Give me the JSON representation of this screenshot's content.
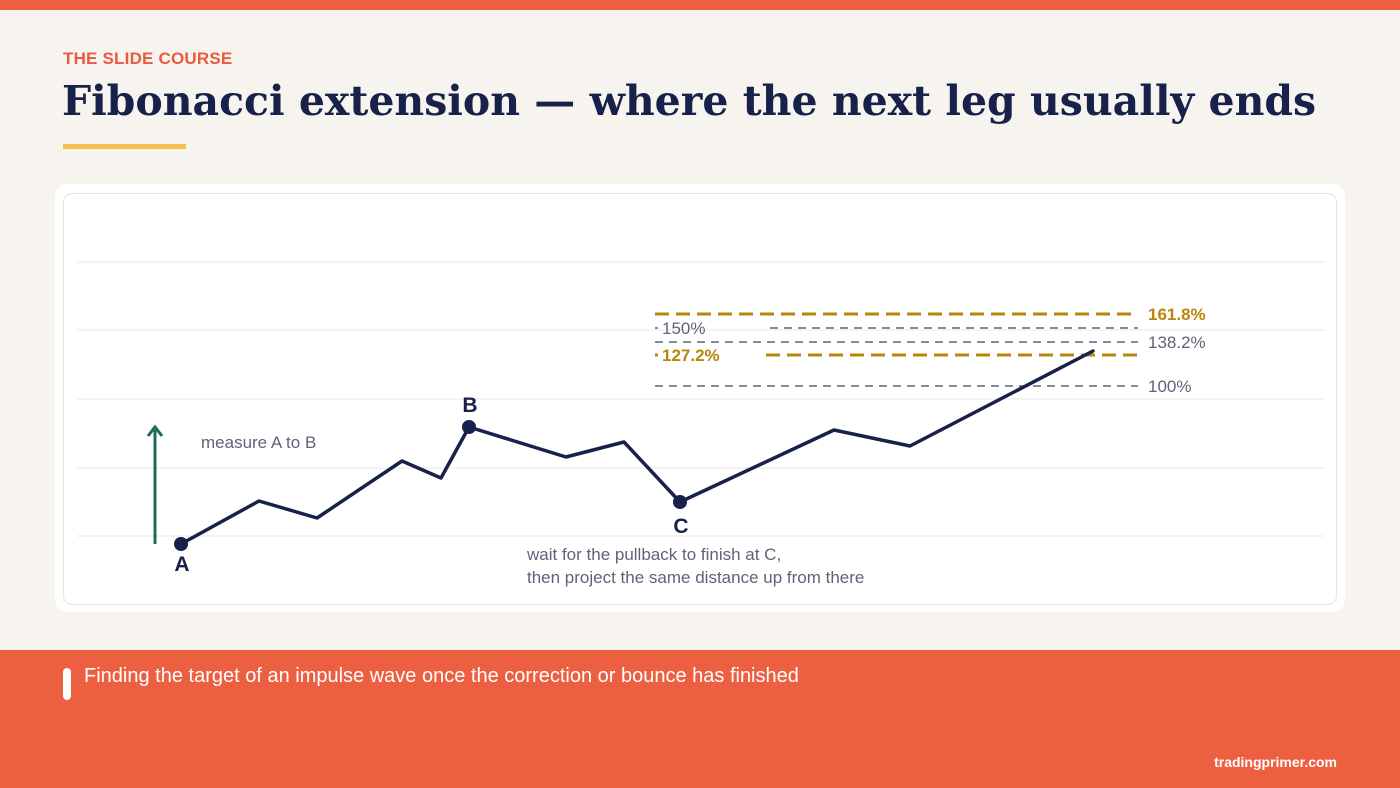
{
  "header": {
    "kicker": "THE SLIDE COURSE",
    "title": "Fibonacci extension — where the next leg usually ends"
  },
  "diagram": {
    "points": {
      "a": "A",
      "b": "B",
      "c": "C"
    },
    "annotations": {
      "measure": "measure A to B",
      "pullback_line1": "wait for the pullback to finish at C,",
      "pullback_line2": "then project the same distance up from there"
    },
    "levels": {
      "l100": "100%",
      "l127": "127.2%",
      "l138": "138.2%",
      "l150": "150%",
      "l161": "161.8%"
    },
    "colors": {
      "price_line": "#17214a",
      "arrow": "#1e6b5c",
      "key_level": "#b8860b",
      "secondary_level": "#5e6478"
    }
  },
  "footer": {
    "caption": "Finding the target of an impulse wave once the correction or bounce has finished",
    "brand": "tradingprimer.com"
  }
}
